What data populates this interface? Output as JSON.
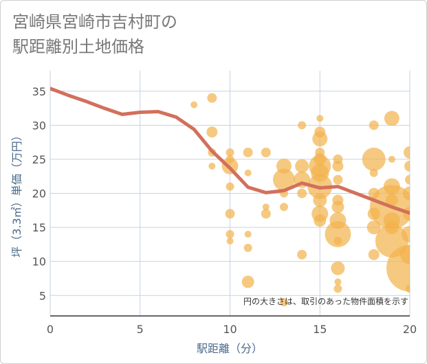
{
  "chart_data": {
    "type": "scatter",
    "title": [
      "宮崎県宮崎市吉村町の",
      "駅距離別土地価格"
    ],
    "xlabel": "駅距離（分）",
    "ylabel": "坪（3.3㎡）単価（万円）",
    "xlim": [
      0,
      20
    ],
    "ylim": [
      2,
      38
    ],
    "xticks": [
      0,
      5,
      10,
      15,
      20
    ],
    "yticks": [
      5,
      10,
      15,
      20,
      25,
      30,
      35
    ],
    "grid": true,
    "note": "円の大きさは、取引のあった物件面積を示す",
    "colors": {
      "bubble": "#f2b24c",
      "line": "#d2705b",
      "grid": "#c5d3df"
    },
    "trend_line": {
      "x": [
        0,
        1,
        2,
        3,
        4,
        5,
        6,
        7,
        8,
        9,
        10,
        11,
        12,
        13,
        14,
        15,
        16,
        17,
        18,
        19,
        20
      ],
      "y": [
        35.4,
        34.4,
        33.5,
        32.5,
        31.6,
        31.9,
        32.0,
        31.2,
        29.4,
        26.2,
        23.7,
        20.9,
        20.1,
        20.4,
        21.5,
        20.8,
        21.0,
        20.0,
        19.0,
        18.0,
        17.1
      ]
    },
    "bubbles": [
      {
        "x": 8,
        "y": 33,
        "r": 5
      },
      {
        "x": 9,
        "y": 34,
        "r": 7
      },
      {
        "x": 9,
        "y": 29,
        "r": 8
      },
      {
        "x": 9,
        "y": 26,
        "r": 6
      },
      {
        "x": 9,
        "y": 24,
        "r": 5
      },
      {
        "x": 10,
        "y": 26,
        "r": 6
      },
      {
        "x": 10,
        "y": 25,
        "r": 6
      },
      {
        "x": 10,
        "y": 24,
        "r": 12
      },
      {
        "x": 10,
        "y": 21,
        "r": 6
      },
      {
        "x": 10,
        "y": 17,
        "r": 7
      },
      {
        "x": 10,
        "y": 14,
        "r": 6
      },
      {
        "x": 10,
        "y": 13,
        "r": 5
      },
      {
        "x": 11,
        "y": 26,
        "r": 7
      },
      {
        "x": 11,
        "y": 23,
        "r": 5
      },
      {
        "x": 11,
        "y": 14,
        "r": 5
      },
      {
        "x": 11,
        "y": 12,
        "r": 6
      },
      {
        "x": 11,
        "y": 7,
        "r": 9
      },
      {
        "x": 12,
        "y": 26,
        "r": 7
      },
      {
        "x": 12,
        "y": 18,
        "r": 5
      },
      {
        "x": 12,
        "y": 17,
        "r": 7
      },
      {
        "x": 13,
        "y": 24,
        "r": 11
      },
      {
        "x": 13,
        "y": 22,
        "r": 16
      },
      {
        "x": 13,
        "y": 20,
        "r": 6
      },
      {
        "x": 13,
        "y": 18,
        "r": 6
      },
      {
        "x": 13,
        "y": 4,
        "r": 6
      },
      {
        "x": 14,
        "y": 30,
        "r": 6
      },
      {
        "x": 14,
        "y": 24,
        "r": 10
      },
      {
        "x": 14,
        "y": 22,
        "r": 12
      },
      {
        "x": 14,
        "y": 20,
        "r": 7
      },
      {
        "x": 14,
        "y": 11,
        "r": 7
      },
      {
        "x": 15,
        "y": 31,
        "r": 5
      },
      {
        "x": 15,
        "y": 29,
        "r": 8
      },
      {
        "x": 15,
        "y": 28,
        "r": 11
      },
      {
        "x": 15,
        "y": 26,
        "r": 7
      },
      {
        "x": 15,
        "y": 25,
        "r": 9
      },
      {
        "x": 15,
        "y": 24,
        "r": 16
      },
      {
        "x": 15,
        "y": 23,
        "r": 13
      },
      {
        "x": 15,
        "y": 21,
        "r": 18
      },
      {
        "x": 15,
        "y": 19,
        "r": 10
      },
      {
        "x": 15,
        "y": 17,
        "r": 12
      },
      {
        "x": 15,
        "y": 16,
        "r": 9
      },
      {
        "x": 16,
        "y": 25,
        "r": 7
      },
      {
        "x": 16,
        "y": 24,
        "r": 8
      },
      {
        "x": 16,
        "y": 22,
        "r": 7
      },
      {
        "x": 16,
        "y": 19,
        "r": 8
      },
      {
        "x": 16,
        "y": 18,
        "r": 9
      },
      {
        "x": 16,
        "y": 16,
        "r": 12
      },
      {
        "x": 16,
        "y": 14,
        "r": 19
      },
      {
        "x": 16,
        "y": 13,
        "r": 6
      },
      {
        "x": 16,
        "y": 9,
        "r": 10
      },
      {
        "x": 16,
        "y": 7,
        "r": 5
      },
      {
        "x": 16,
        "y": 6,
        "r": 6
      },
      {
        "x": 18,
        "y": 30,
        "r": 7
      },
      {
        "x": 18,
        "y": 25,
        "r": 17
      },
      {
        "x": 18,
        "y": 23,
        "r": 6
      },
      {
        "x": 18,
        "y": 20,
        "r": 8
      },
      {
        "x": 18,
        "y": 17,
        "r": 9
      },
      {
        "x": 18,
        "y": 15,
        "r": 10
      },
      {
        "x": 18,
        "y": 11,
        "r": 8
      },
      {
        "x": 19,
        "y": 31,
        "r": 11
      },
      {
        "x": 19,
        "y": 25,
        "r": 5
      },
      {
        "x": 19,
        "y": 21,
        "r": 12
      },
      {
        "x": 19,
        "y": 19,
        "r": 9
      },
      {
        "x": 19,
        "y": 18,
        "r": 32
      },
      {
        "x": 19,
        "y": 16,
        "r": 12
      },
      {
        "x": 19,
        "y": 15,
        "r": 10
      },
      {
        "x": 19,
        "y": 13,
        "r": 24
      },
      {
        "x": 20,
        "y": 26,
        "r": 9
      },
      {
        "x": 20,
        "y": 24,
        "r": 8
      },
      {
        "x": 20,
        "y": 22,
        "r": 7
      },
      {
        "x": 20,
        "y": 20,
        "r": 10
      },
      {
        "x": 20,
        "y": 17,
        "r": 10
      },
      {
        "x": 20,
        "y": 14,
        "r": 12
      },
      {
        "x": 20,
        "y": 11,
        "r": 14
      },
      {
        "x": 20,
        "y": 9,
        "r": 34
      },
      {
        "x": 20,
        "y": 6,
        "r": 6
      }
    ]
  }
}
